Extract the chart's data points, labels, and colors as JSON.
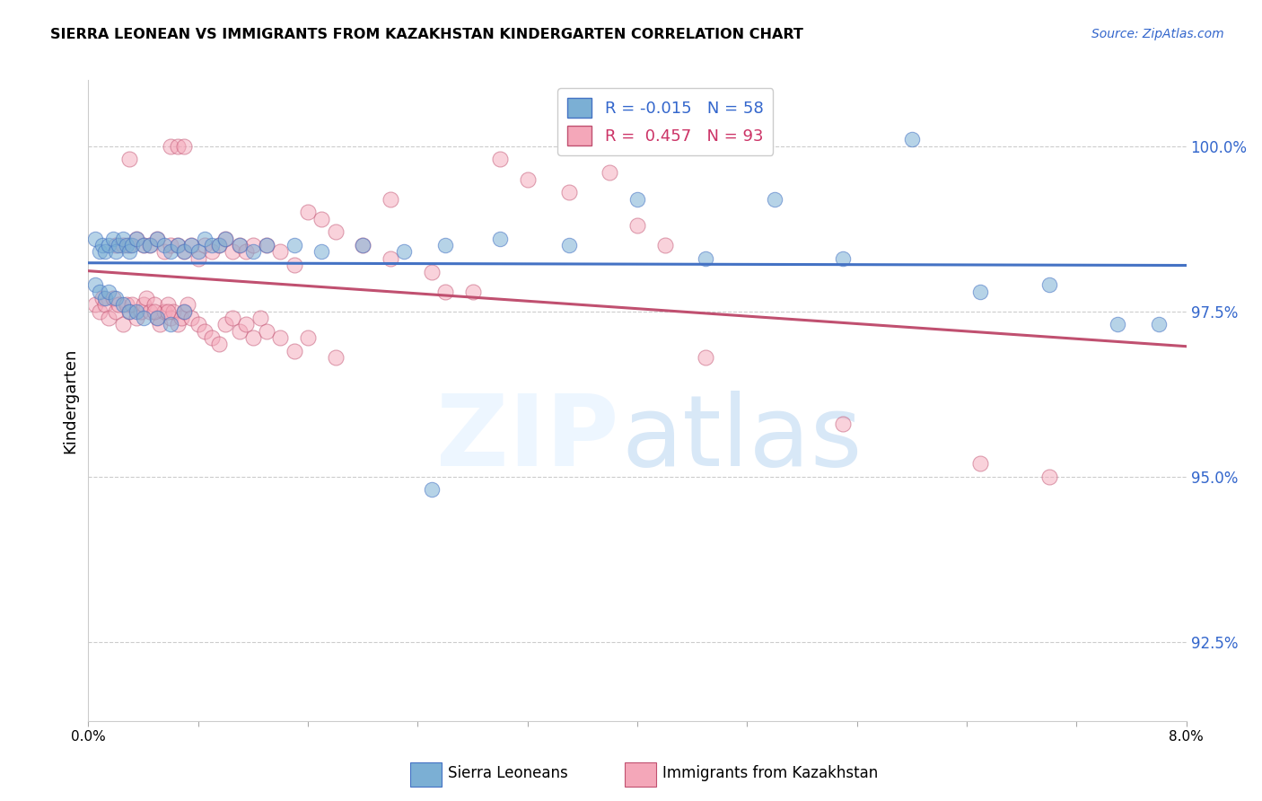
{
  "title": "SIERRA LEONEAN VS IMMIGRANTS FROM KAZAKHSTAN KINDERGARTEN CORRELATION CHART",
  "source": "Source: ZipAtlas.com",
  "ylabel": "Kindergarten",
  "yticks": [
    92.5,
    95.0,
    97.5,
    100.0
  ],
  "ytick_labels": [
    "92.5%",
    "95.0%",
    "97.5%",
    "100.0%"
  ],
  "xmin": 0.0,
  "xmax": 8.0,
  "ymin": 91.3,
  "ymax": 101.0,
  "legend_r_blue": "-0.015",
  "legend_n_blue": "58",
  "legend_r_pink": "0.457",
  "legend_n_pink": "93",
  "blue_color": "#7BAFD4",
  "pink_color": "#F4A7B9",
  "blue_edge_color": "#4472C4",
  "pink_edge_color": "#C05070",
  "blue_line_color": "#4472C4",
  "pink_line_color": "#C05070",
  "blue_scatter_x": [
    0.05,
    0.08,
    0.1,
    0.12,
    0.15,
    0.18,
    0.2,
    0.22,
    0.25,
    0.28,
    0.3,
    0.32,
    0.35,
    0.4,
    0.45,
    0.5,
    0.55,
    0.6,
    0.65,
    0.7,
    0.75,
    0.8,
    0.85,
    0.9,
    0.95,
    1.0,
    1.1,
    1.2,
    1.3,
    1.5,
    1.7,
    2.0,
    2.3,
    2.6,
    3.0,
    3.5,
    4.0,
    4.5,
    5.0,
    5.5,
    6.0,
    6.5,
    7.0,
    7.5,
    7.8,
    0.05,
    0.08,
    0.12,
    0.15,
    0.2,
    0.25,
    0.3,
    0.35,
    0.4,
    0.5,
    0.6,
    0.7,
    2.5
  ],
  "blue_scatter_y": [
    98.6,
    98.4,
    98.5,
    98.4,
    98.5,
    98.6,
    98.4,
    98.5,
    98.6,
    98.5,
    98.4,
    98.5,
    98.6,
    98.5,
    98.5,
    98.6,
    98.5,
    98.4,
    98.5,
    98.4,
    98.5,
    98.4,
    98.6,
    98.5,
    98.5,
    98.6,
    98.5,
    98.4,
    98.5,
    98.5,
    98.4,
    98.5,
    98.4,
    98.5,
    98.6,
    98.5,
    99.2,
    98.3,
    99.2,
    98.3,
    100.1,
    97.8,
    97.9,
    97.3,
    97.3,
    97.9,
    97.8,
    97.7,
    97.8,
    97.7,
    97.6,
    97.5,
    97.5,
    97.4,
    97.4,
    97.3,
    97.5,
    94.8
  ],
  "pink_scatter_x": [
    0.05,
    0.08,
    0.1,
    0.12,
    0.15,
    0.18,
    0.2,
    0.22,
    0.25,
    0.28,
    0.3,
    0.32,
    0.35,
    0.38,
    0.4,
    0.42,
    0.45,
    0.48,
    0.5,
    0.52,
    0.55,
    0.58,
    0.6,
    0.62,
    0.65,
    0.68,
    0.7,
    0.72,
    0.75,
    0.8,
    0.85,
    0.9,
    0.95,
    1.0,
    1.05,
    1.1,
    1.15,
    1.2,
    1.25,
    1.3,
    1.4,
    1.5,
    1.6,
    1.8,
    2.0,
    2.2,
    2.5,
    2.8,
    0.6,
    0.65,
    0.7,
    0.2,
    0.25,
    0.3,
    0.35,
    0.4,
    0.45,
    0.5,
    0.55,
    0.6,
    0.65,
    0.7,
    0.75,
    0.8,
    0.85,
    0.9,
    0.95,
    1.0,
    1.05,
    1.1,
    1.15,
    1.2,
    1.3,
    1.4,
    1.5,
    0.48,
    0.58,
    3.2,
    3.5,
    3.8,
    4.0,
    4.2,
    1.8,
    2.2,
    3.0,
    4.5,
    5.5,
    6.5,
    7.0,
    2.6,
    1.6,
    1.7,
    0.3
  ],
  "pink_scatter_y": [
    97.6,
    97.5,
    97.7,
    97.6,
    97.4,
    97.7,
    97.5,
    97.6,
    97.3,
    97.6,
    97.5,
    97.6,
    97.4,
    97.5,
    97.6,
    97.7,
    97.5,
    97.6,
    97.4,
    97.3,
    97.5,
    97.6,
    97.4,
    97.5,
    97.3,
    97.4,
    97.5,
    97.6,
    97.4,
    97.3,
    97.2,
    97.1,
    97.0,
    97.3,
    97.4,
    97.2,
    97.3,
    97.1,
    97.4,
    97.2,
    97.1,
    96.9,
    97.1,
    96.8,
    98.5,
    98.3,
    98.1,
    97.8,
    100.0,
    100.0,
    100.0,
    98.5,
    98.5,
    98.5,
    98.6,
    98.5,
    98.5,
    98.6,
    98.4,
    98.5,
    98.5,
    98.4,
    98.5,
    98.3,
    98.5,
    98.4,
    98.5,
    98.6,
    98.4,
    98.5,
    98.4,
    98.5,
    98.5,
    98.4,
    98.2,
    97.5,
    97.5,
    99.5,
    99.3,
    99.6,
    98.8,
    98.5,
    98.7,
    99.2,
    99.8,
    96.8,
    95.8,
    95.2,
    95.0,
    97.8,
    99.0,
    98.9,
    99.8
  ]
}
